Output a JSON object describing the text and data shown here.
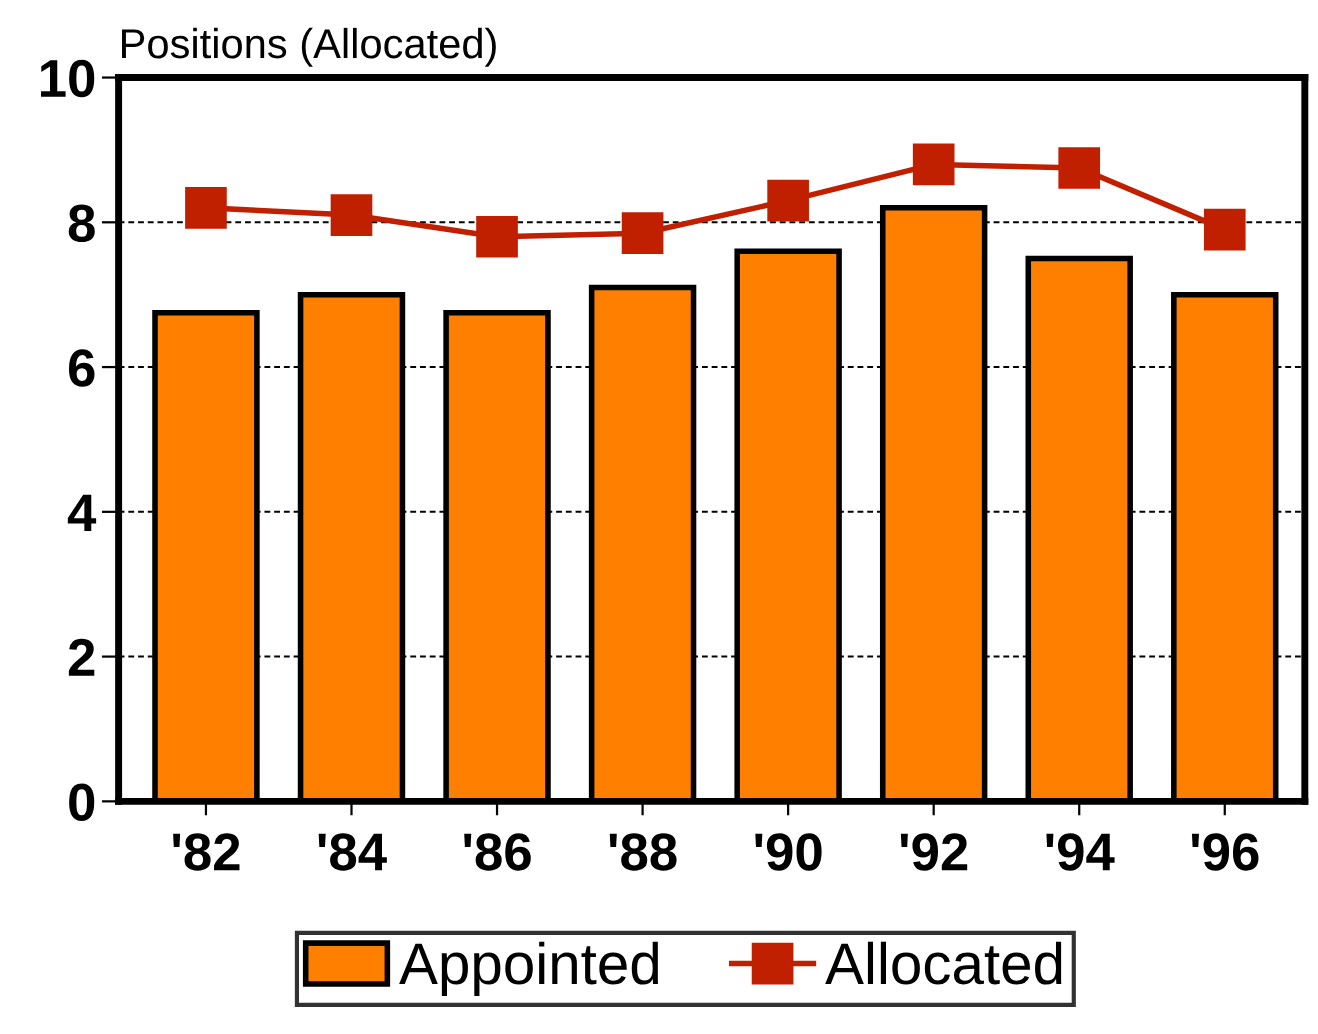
{
  "chart_data": {
    "type": "bar",
    "ylabel": "Positions (Allocated)",
    "categories": [
      "'82",
      "'84",
      "'86",
      "'88",
      "'90",
      "'92",
      "'94",
      "'96"
    ],
    "series": [
      {
        "name": "Appointed",
        "color": "#ff8000",
        "values": [
          6.75,
          7.0,
          6.75,
          7.1,
          7.6,
          8.2,
          7.5,
          7.0
        ]
      },
      {
        "name": "Allocated",
        "type": "line",
        "color": "#c02000",
        "values": [
          8.2,
          8.1,
          7.8,
          7.85,
          8.3,
          8.8,
          8.75,
          7.9
        ]
      }
    ],
    "ylim": [
      0,
      10
    ],
    "yticks": [
      0,
      2,
      4,
      6,
      8,
      10
    ],
    "grid": "y",
    "legend": "bottom",
    "marker": "square",
    "line_style": "solid"
  }
}
